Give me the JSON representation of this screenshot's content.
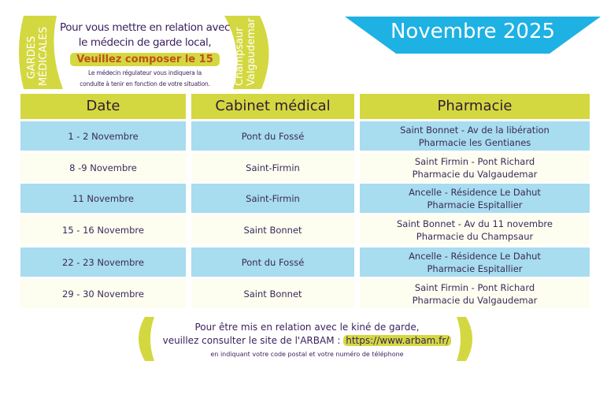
{
  "header": {
    "left_tag": [
      "GARDES",
      "MÉDICALES"
    ],
    "right_tag": [
      "Champsaur",
      "Valgaudemar"
    ],
    "intro_line1": "Pour vous mettre en relation avec",
    "intro_line2": "le médecin de garde local,",
    "call_to_action": "Veuillez composer le 15",
    "note_line1": "Le médecin régulateur vous indiquera la",
    "note_line2": "conduite à tenir en fonction de votre situation.",
    "month_title": "Novembre 2025"
  },
  "colors": {
    "accent_green": "#d4d840",
    "banner_blue": "#1eb1e3",
    "row_blue": "#a8dcef",
    "row_cream": "#fdfdf0",
    "call_orange": "#c0501a"
  },
  "table": {
    "columns": [
      "Date",
      "Cabinet médical",
      "Pharmacie"
    ],
    "rows": [
      {
        "date": "1 - 2 Novembre",
        "cabinet": "Pont du Fossé",
        "pharmacie": [
          "Saint Bonnet - Av de la libération",
          "Pharmacie les Gentianes"
        ]
      },
      {
        "date": "8 -9  Novembre",
        "cabinet": "Saint-Firmin",
        "pharmacie": [
          "Saint Firmin - Pont Richard",
          "Pharmacie du Valgaudemar"
        ]
      },
      {
        "date": "11 Novembre",
        "cabinet": "Saint-Firmin",
        "pharmacie": [
          "Ancelle - Résidence Le Dahut",
          "Pharmacie Espitallier"
        ]
      },
      {
        "date": "15 - 16 Novembre",
        "cabinet": "Saint Bonnet",
        "pharmacie": [
          "Saint Bonnet - Av du 11 novembre",
          "Pharmacie du Champsaur"
        ]
      },
      {
        "date": "22 - 23 Novembre",
        "cabinet": "Pont du Fossé",
        "pharmacie": [
          "Ancelle - Résidence Le Dahut",
          "Pharmacie Espitallier"
        ]
      },
      {
        "date": "29 - 30 Novembre",
        "cabinet": "Saint Bonnet",
        "pharmacie": [
          "Saint Firmin - Pont Richard",
          "Pharmacie du Valgaudemar"
        ]
      }
    ]
  },
  "footer": {
    "line1": "Pour être mis en relation avec le kiné de garde,",
    "line2": "veuillez consulter le site de l'ARBAM :",
    "url": "https://www.arbam.fr/",
    "line3": "en indiquant votre code postal et votre numéro de téléphone"
  }
}
